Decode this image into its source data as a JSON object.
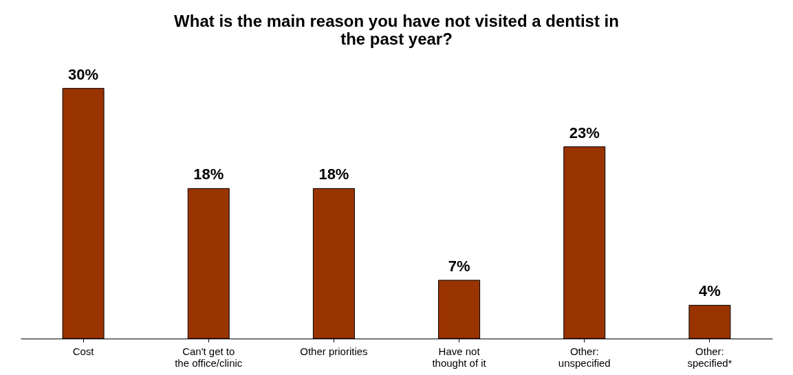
{
  "chart_data": {
    "type": "bar",
    "title": "What is the main reason you have not visited a dentist in the past year?",
    "categories": [
      "Cost",
      "Can't get to\nthe office/clinic",
      "Other priorities",
      "Have not\nthought of it",
      "Other:\nunspecified",
      "Other:\nspecified*"
    ],
    "values": [
      30,
      18,
      18,
      7,
      23,
      4
    ],
    "value_labels": [
      "30%",
      "18%",
      "18%",
      "7%",
      "23%",
      "4%"
    ],
    "color": "#993300",
    "grid": false
  }
}
